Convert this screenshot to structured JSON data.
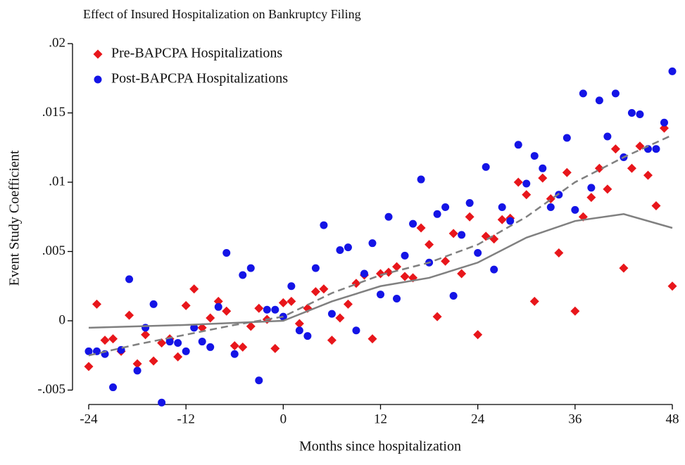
{
  "chart_data": {
    "type": "scatter",
    "title": "Effect of Insured Hospitalization on Bankruptcy Filing",
    "x_label": "Months since hospitalization",
    "y_label": "Event Study Coefficient",
    "xlim": [
      -24,
      48
    ],
    "xticks": [
      -24,
      -12,
      0,
      12,
      24,
      36,
      48
    ],
    "ylim": [
      -0.006,
      0.02
    ],
    "yticks": [
      {
        "value": -0.005,
        "label": "-.005"
      },
      0,
      {
        "value": 0.005,
        "label": ".005"
      },
      {
        "value": 0.01,
        "label": ".01"
      },
      {
        "value": 0.015,
        "label": ".015"
      },
      {
        "value": 0.02,
        "label": ".02"
      }
    ],
    "legend": "top-left",
    "series": [
      {
        "name": "Pre-BAPCPA Hospitalizations",
        "color": "#e8161b",
        "marker": "diamond",
        "x": [
          -24,
          -23,
          -22,
          -21,
          -20,
          -19,
          -18,
          -17,
          -16,
          -15,
          -14,
          -13,
          -12,
          -11,
          -10,
          -9,
          -8,
          -7,
          -6,
          -5,
          -4,
          -3,
          -2,
          -1,
          0,
          1,
          2,
          3,
          4,
          5,
          6,
          7,
          8,
          9,
          10,
          11,
          12,
          13,
          14,
          15,
          16,
          17,
          18,
          19,
          20,
          21,
          22,
          23,
          24,
          25,
          26,
          27,
          28,
          29,
          30,
          31,
          32,
          33,
          34,
          35,
          36,
          37,
          38,
          39,
          40,
          41,
          42,
          43,
          44,
          45,
          46,
          47,
          48
        ],
        "values": [
          -0.0033,
          0.0012,
          -0.0014,
          -0.0013,
          -0.0022,
          0.0004,
          -0.0031,
          -0.001,
          -0.0029,
          -0.0016,
          -0.0013,
          -0.0026,
          0.0011,
          0.0023,
          -0.0005,
          0.0002,
          0.0014,
          0.0007,
          -0.0018,
          -0.0019,
          -0.0004,
          0.0009,
          0.0001,
          -0.002,
          0.0013,
          0.0014,
          -0.0002,
          0.0009,
          0.0021,
          0.0023,
          -0.0014,
          0.0002,
          0.0012,
          0.0027,
          0.0033,
          -0.0013,
          0.0034,
          0.0035,
          0.0039,
          0.0032,
          0.0031,
          0.0067,
          0.0055,
          0.0003,
          0.0043,
          0.0063,
          0.0034,
          0.0075,
          -0.001,
          0.0061,
          0.0059,
          0.0073,
          0.0074,
          0.01,
          0.0091,
          0.0014,
          0.0103,
          0.0088,
          0.0049,
          0.0107,
          0.0007,
          0.0075,
          0.0089,
          0.011,
          0.0095,
          0.0124,
          0.0038,
          0.011,
          0.0126,
          0.0105,
          0.0083,
          0.0139,
          0.0025
        ]
      },
      {
        "name": "Post-BAPCPA Hospitalizations",
        "color": "#1414e6",
        "marker": "circle",
        "x": [
          -24,
          -23,
          -22,
          -21,
          -20,
          -19,
          -18,
          -17,
          -16,
          -15,
          -14,
          -13,
          -12,
          -11,
          -10,
          -9,
          -8,
          -7,
          -6,
          -5,
          -4,
          -3,
          -2,
          -1,
          0,
          1,
          2,
          3,
          4,
          5,
          6,
          7,
          8,
          9,
          10,
          11,
          12,
          13,
          14,
          15,
          16,
          17,
          18,
          19,
          20,
          21,
          22,
          23,
          24,
          25,
          26,
          27,
          28,
          29,
          30,
          31,
          32,
          33,
          34,
          35,
          36,
          37,
          38,
          39,
          40,
          41,
          42,
          43,
          44,
          45,
          46,
          47,
          48
        ],
        "values": [
          -0.0022,
          -0.0022,
          -0.0024,
          -0.0048,
          -0.0021,
          0.003,
          -0.0036,
          -0.0005,
          0.0012,
          -0.0059,
          -0.0015,
          -0.0016,
          -0.0022,
          -0.0005,
          -0.0015,
          -0.0019,
          0.001,
          0.0049,
          -0.0024,
          0.0033,
          0.0038,
          -0.0043,
          0.0008,
          0.0008,
          0.0003,
          0.0025,
          -0.0007,
          -0.0011,
          0.0038,
          0.0069,
          0.0005,
          0.0051,
          0.0053,
          -0.0007,
          0.0034,
          0.0056,
          0.0019,
          0.0075,
          0.0016,
          0.0047,
          0.007,
          0.0102,
          0.0042,
          0.0077,
          0.0082,
          0.0018,
          0.0062,
          0.0085,
          0.0049,
          0.0111,
          0.0037,
          0.0082,
          0.0072,
          0.0127,
          0.0099,
          0.0119,
          0.011,
          0.0082,
          0.0091,
          0.0132,
          0.008,
          0.0164,
          0.0096,
          0.0159,
          0.0133,
          0.0164,
          0.0118,
          0.015,
          0.0149,
          0.0124,
          0.0124,
          0.0143,
          0.018
        ]
      },
      {
        "color": "#808080",
        "marker": "line",
        "style": "dashed",
        "x": [
          -24,
          -18,
          -12,
          -6,
          0,
          6,
          12,
          18,
          24,
          30,
          36,
          42,
          48
        ],
        "values": [
          -0.0025,
          -0.0017,
          -0.001,
          -0.0003,
          0.0003,
          0.002,
          0.0033,
          0.0042,
          0.0055,
          0.0075,
          0.01,
          0.0118,
          0.0134
        ]
      },
      {
        "color": "#808080",
        "marker": "line",
        "style": "solid",
        "x": [
          -24,
          -12,
          0,
          6,
          12,
          18,
          24,
          30,
          36,
          42,
          48
        ],
        "values": [
          -0.0005,
          -0.0003,
          0.0,
          0.0014,
          0.0025,
          0.0031,
          0.0042,
          0.006,
          0.0072,
          0.0077,
          0.0067
        ]
      }
    ]
  }
}
